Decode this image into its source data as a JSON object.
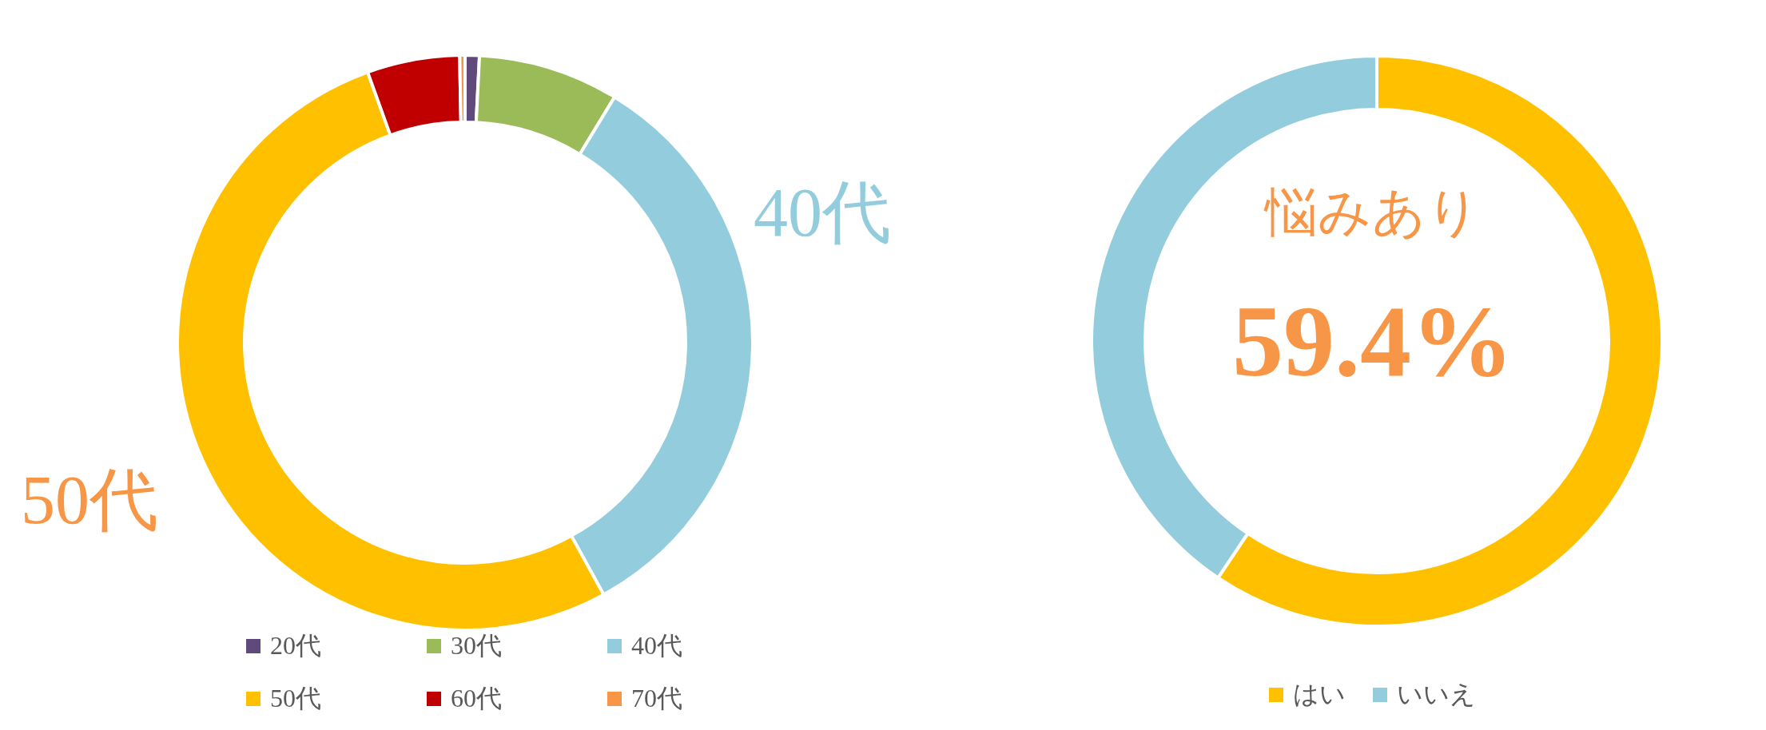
{
  "chart_data": [
    {
      "type": "donut",
      "categories": [
        "20代",
        "30代",
        "40代",
        "50代",
        "60代",
        "70代"
      ],
      "values": [
        0.8,
        7.9,
        33.3,
        52.5,
        5.2,
        0.3
      ],
      "colors": [
        "#604a7b",
        "#9bbb59",
        "#93cddd",
        "#ffc000",
        "#c00000",
        "#f79646"
      ],
      "annotations": [
        "40代",
        "50代"
      ],
      "legend": "bottom"
    },
    {
      "type": "donut",
      "categories": [
        "はい",
        "いいえ"
      ],
      "values": [
        59.4,
        40.6
      ],
      "colors": [
        "#ffc000",
        "#93cddd"
      ],
      "annotations": [
        "悩みあり",
        "59.4%"
      ],
      "legend": "bottom"
    }
  ]
}
